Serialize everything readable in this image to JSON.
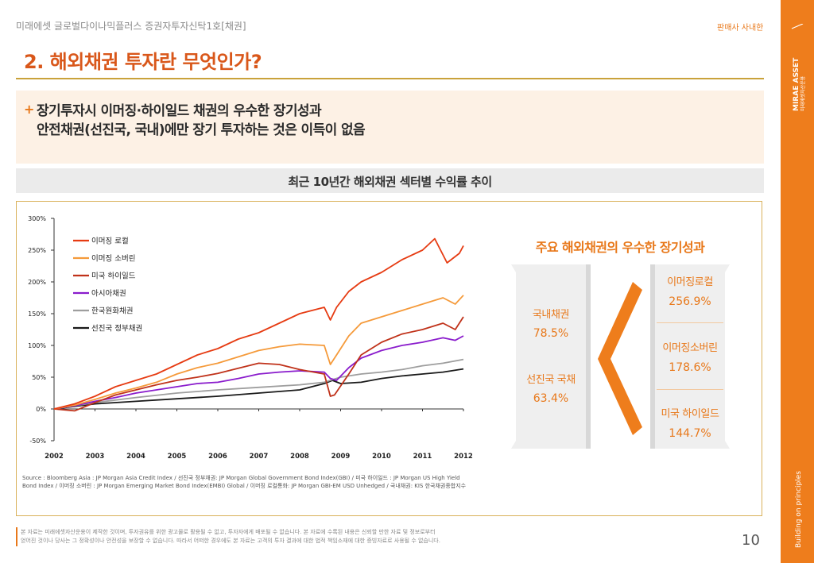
{
  "header": {
    "fund_name": "미래에셋 글로벌다이나믹플러스 증권자투자신탁1호[채권]",
    "sales_note": "판매사 사내한",
    "page_title": "2. 해외채권 투자란 무엇인가?"
  },
  "brand": {
    "logo_line1": "MIRAE ASSET",
    "logo_line2": "미래에셋자산운용",
    "tagline": "Building on principles",
    "color": "#ee7d1c"
  },
  "highlight": {
    "plus": "+",
    "line1": "장기투자시 이머징·하이일드 채권의 우수한 장기성과",
    "line2": "안전채권(선진국, 국내)에만 장기 투자하는 것은 이득이 없음"
  },
  "section_title": "최근 10년간 해외채권 섹터별 수익률 추이",
  "chart_data": {
    "type": "line",
    "x_ticks": [
      "2002",
      "2003",
      "2004",
      "2005",
      "2006",
      "2007",
      "2008",
      "2009",
      "2010",
      "2011",
      "2012"
    ],
    "xlim": [
      2002,
      2012
    ],
    "y_ticks": [
      "300%",
      "250%",
      "200%",
      "150%",
      "100%",
      "50%",
      "0%",
      "-50%"
    ],
    "ylim": [
      -50,
      300
    ],
    "grid": false,
    "legend_position": "top-left",
    "series": [
      {
        "name": "이머징 로컬",
        "color": "#e63b12",
        "x": [
          2002,
          2002.5,
          2003,
          2003.5,
          2004,
          2004.5,
          2005,
          2005.5,
          2006,
          2006.5,
          2007,
          2007.5,
          2008,
          2008.6,
          2008.75,
          2008.9,
          2009.2,
          2009.5,
          2010,
          2010.5,
          2011,
          2011.3,
          2011.6,
          2011.9,
          2012
        ],
        "y": [
          0,
          8,
          20,
          35,
          45,
          55,
          70,
          85,
          95,
          110,
          120,
          135,
          150,
          160,
          140,
          160,
          185,
          200,
          215,
          235,
          250,
          268,
          230,
          245,
          257
        ]
      },
      {
        "name": "이머징 소버린",
        "color": "#f59a3a",
        "x": [
          2002,
          2002.5,
          2003,
          2003.5,
          2004,
          2004.5,
          2005,
          2005.5,
          2006,
          2006.5,
          2007,
          2007.5,
          2008,
          2008.6,
          2008.75,
          2008.9,
          2009.2,
          2009.5,
          2010,
          2010.5,
          2011,
          2011.5,
          2011.8,
          2012
        ],
        "y": [
          0,
          6,
          15,
          25,
          33,
          42,
          55,
          65,
          72,
          82,
          92,
          98,
          102,
          100,
          70,
          85,
          115,
          135,
          145,
          155,
          165,
          175,
          165,
          179
        ]
      },
      {
        "name": "미국 하이일드",
        "color": "#c0321a",
        "x": [
          2002,
          2002.5,
          2003,
          2003.5,
          2004,
          2004.5,
          2005,
          2005.5,
          2006,
          2006.5,
          2007,
          2007.5,
          2008,
          2008.6,
          2008.75,
          2008.85,
          2009.2,
          2009.5,
          2010,
          2010.5,
          2011,
          2011.5,
          2011.8,
          2012
        ],
        "y": [
          0,
          -3,
          10,
          22,
          30,
          38,
          45,
          50,
          56,
          64,
          72,
          70,
          62,
          55,
          20,
          22,
          55,
          85,
          105,
          118,
          125,
          135,
          125,
          145
        ]
      },
      {
        "name": "아시아채권",
        "color": "#8a1ccc",
        "x": [
          2002,
          2002.5,
          2003,
          2003.5,
          2004,
          2004.5,
          2005,
          2005.5,
          2006,
          2006.5,
          2007,
          2007.5,
          2008,
          2008.6,
          2008.75,
          2008.9,
          2009.2,
          2009.5,
          2010,
          2010.5,
          2011,
          2011.5,
          2011.8,
          2012
        ],
        "y": [
          0,
          5,
          12,
          18,
          25,
          30,
          35,
          40,
          42,
          48,
          55,
          58,
          60,
          58,
          48,
          45,
          65,
          80,
          92,
          100,
          105,
          112,
          108,
          115
        ]
      },
      {
        "name": "한국원화채권",
        "color": "#9e9e9e",
        "x": [
          2002,
          2003,
          2004,
          2005,
          2006,
          2007,
          2008,
          2008.6,
          2009,
          2009.5,
          2010,
          2010.5,
          2011,
          2011.5,
          2012
        ],
        "y": [
          0,
          10,
          18,
          25,
          30,
          34,
          38,
          42,
          50,
          55,
          58,
          62,
          68,
          72,
          78
        ]
      },
      {
        "name": "선진국 정부채권",
        "color": "#1a1a1a",
        "x": [
          2002,
          2003,
          2004,
          2005,
          2006,
          2007,
          2008,
          2008.6,
          2008.8,
          2009,
          2009.5,
          2010,
          2010.5,
          2011,
          2011.5,
          2012
        ],
        "y": [
          0,
          8,
          12,
          16,
          20,
          25,
          30,
          40,
          45,
          40,
          42,
          48,
          52,
          55,
          58,
          63
        ]
      }
    ],
    "source": "Source : Bloomberg Asia : JP Morgan Asia Credit Index / 선진국 정부채권: JP Morgan Global Government Bond Index(GBI) / 미국 하이일드 : JP Morgan US High Yield Bond Index / 이머징 소버린 : JP Morgan Emerging Market Bond Index(EMBI) Global / 이머징 로컬통화: JP Morgan GBI-EM USD Unhedged / 국내채권: KIS 한국채권종합지수"
  },
  "summary": {
    "title": "주요 해외채권의 우수한 장기성과",
    "left": [
      {
        "label": "국내채권",
        "value": "78.5%"
      },
      {
        "label": "선진국 국채",
        "value": "63.4%"
      }
    ],
    "right": [
      {
        "label": "이머징로컬",
        "value": "256.9%"
      },
      {
        "label": "이머징소버린",
        "value": "178.6%"
      },
      {
        "label": "미국 하이일드",
        "value": "144.7%"
      }
    ]
  },
  "footer": {
    "disclaimer_line1": "본 자료는 미래에셋자산운용이 제작한 것이며, 투자권유를 위한 광고물로 활용될 수 없고, 투자자에게 배포될 수 없습니다. 본 자료에 수록된 내용은 신뢰할 만한 자료 및 정보로부터",
    "disclaimer_line2": "얻어진 것이나 당사는 그 정확성이나 안전성을 보장할 수 없습니다. 따라서 어떠한 경우에도 본 자료는 고객의 투자 결과에 대한 법적 책임소재에 대한 증빙자료로 사용될 수 없습니다.",
    "page_number": "10"
  }
}
